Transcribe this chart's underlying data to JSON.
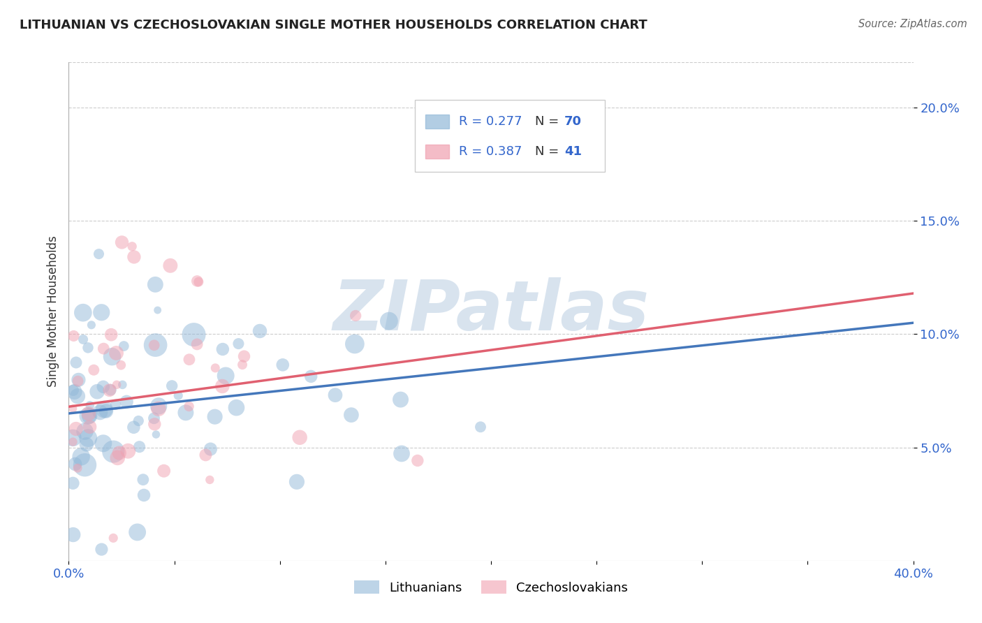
{
  "title": "LITHUANIAN VS CZECHOSLOVAKIAN SINGLE MOTHER HOUSEHOLDS CORRELATION CHART",
  "source": "Source: ZipAtlas.com",
  "ylabel": "Single Mother Households",
  "xlim": [
    0.0,
    0.4
  ],
  "ylim": [
    0.0,
    0.22
  ],
  "yticks_right": [
    0.05,
    0.1,
    0.15,
    0.2
  ],
  "ytick_labels_right": [
    "5.0%",
    "10.0%",
    "15.0%",
    "20.0%"
  ],
  "legend_r_lith": "R = 0.277",
  "legend_n_lith": "N = 70",
  "legend_r_czech": "R = 0.387",
  "legend_n_czech": "N = 41",
  "lith_color": "#92b8d8",
  "czech_color": "#f0a0b0",
  "lith_line_color": "#4477bb",
  "czech_line_color": "#e06070",
  "text_blue": "#3366cc",
  "text_dark": "#333333",
  "background_color": "#ffffff",
  "watermark": "ZIPatlas",
  "grid_color": "#cccccc",
  "lith_N": 70,
  "czech_N": 41,
  "random_seed": 42,
  "lith_line_x0": 0.0,
  "lith_line_y0": 0.065,
  "lith_line_x1": 0.4,
  "lith_line_y1": 0.105,
  "czech_line_x0": 0.0,
  "czech_line_y0": 0.068,
  "czech_line_x1": 0.4,
  "czech_line_y1": 0.118
}
